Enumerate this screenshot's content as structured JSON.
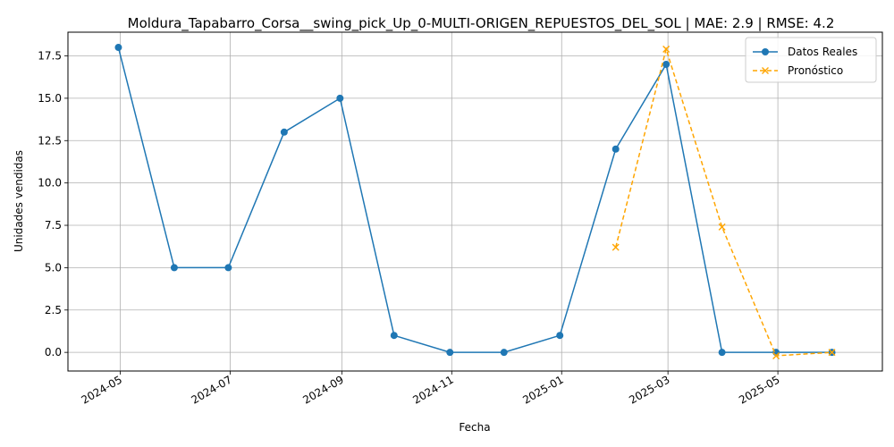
{
  "chart_data": {
    "type": "line",
    "title": "Moldura_Tapabarro_Corsa__swing_pick_Up_0-MULTI-ORIGEN_REPUESTOS_DEL_SOL | MAE: 2.9 | RMSE: 4.2",
    "xlabel": "Fecha",
    "ylabel": "Unidades vendidas",
    "xlim": [
      "2024-04-02",
      "2025-06-28"
    ],
    "ylim": [
      -1.1,
      18.9
    ],
    "grid": true,
    "legend": "top-right",
    "x_ticks": [
      "2024-05-01",
      "2024-07-01",
      "2024-09-01",
      "2024-11-01",
      "2025-01-01",
      "2025-03-01",
      "2025-05-01"
    ],
    "x_tick_labels": [
      "2024-05",
      "2024-07",
      "2024-09",
      "2024-11",
      "2025-01",
      "2025-03",
      "2025-05"
    ],
    "y_ticks": [
      0.0,
      2.5,
      5.0,
      7.5,
      10.0,
      12.5,
      15.0,
      17.5
    ],
    "y_tick_labels": [
      "0.0",
      "2.5",
      "5.0",
      "7.5",
      "10.0",
      "12.5",
      "15.0",
      "17.5"
    ],
    "series": [
      {
        "name": "Datos Reales",
        "color": "#1f77b4",
        "style": "solid",
        "marker": "circle",
        "x": [
          "2024-04-30",
          "2024-05-31",
          "2024-06-30",
          "2024-07-31",
          "2024-08-31",
          "2024-09-30",
          "2024-10-31",
          "2024-11-30",
          "2024-12-31",
          "2025-01-31",
          "2025-02-28",
          "2025-03-31",
          "2025-04-30",
          "2025-05-31"
        ],
        "values": [
          18,
          5,
          5,
          13,
          15,
          1,
          0,
          0,
          1,
          12,
          17,
          0,
          0,
          0
        ]
      },
      {
        "name": "Pronóstico",
        "color": "#ffa500",
        "style": "dashed",
        "marker": "x",
        "x": [
          "2025-01-31",
          "2025-02-28",
          "2025-03-31",
          "2025-04-30",
          "2025-05-31"
        ],
        "values": [
          6.2,
          17.9,
          7.4,
          -0.2,
          0.0
        ]
      }
    ]
  }
}
